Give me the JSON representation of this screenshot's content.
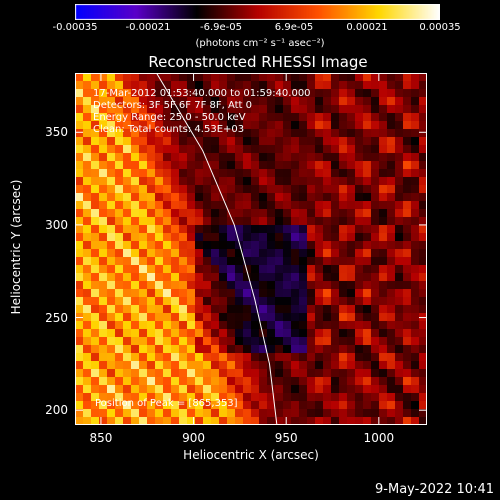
{
  "chart_data": {
    "type": "heatmap",
    "title": "Reconstructed RHESSI Image",
    "xlabel": "Heliocentric X (arcsec)",
    "ylabel": "Heliocentric Y (arcsec)",
    "xlim": [
      836,
      1026
    ],
    "ylim": [
      192,
      382
    ],
    "xticks": [
      "850",
      "900",
      "950",
      "1000"
    ],
    "xtick_values": [
      850,
      900,
      950,
      1000
    ],
    "yticks": [
      "350",
      "300",
      "250",
      "200"
    ],
    "ytick_values": [
      350,
      300,
      250,
      200
    ],
    "colorbar": {
      "tick_labels": [
        "-0.00035",
        "-0.00021",
        "-6.9e-05",
        "6.9e-05",
        "0.00021",
        "0.00035"
      ],
      "range": [
        -0.00035,
        0.00035
      ],
      "unit_label": "(photons cm⁻² s⁻¹ asec⁻²)",
      "colors": [
        "#0000ff",
        "#5a00c8",
        "#000000",
        "#b40000",
        "#ff5000",
        "#ffd700",
        "#ffffff"
      ]
    },
    "annotations": {
      "time_range": "17-Mar-2012 01:53:40.000 to 01:59:40.000",
      "detectors": "Detectors: 3F 5F 6F 7F 8F, Att 0",
      "energy": "Energy Range: 25.0 - 50.0 keV",
      "clean": "Clean: Total counts: 4.53E+03",
      "peak": "Position of Peak = [865,353]"
    },
    "limb_curve": [
      [
        880,
        382
      ],
      [
        905,
        340
      ],
      [
        922,
        300
      ],
      [
        933,
        260
      ],
      [
        941,
        225
      ],
      [
        945,
        192
      ]
    ],
    "peak_position": [
      865,
      353
    ]
  },
  "footer": {
    "timestamp": "9-May-2022 10:41"
  }
}
